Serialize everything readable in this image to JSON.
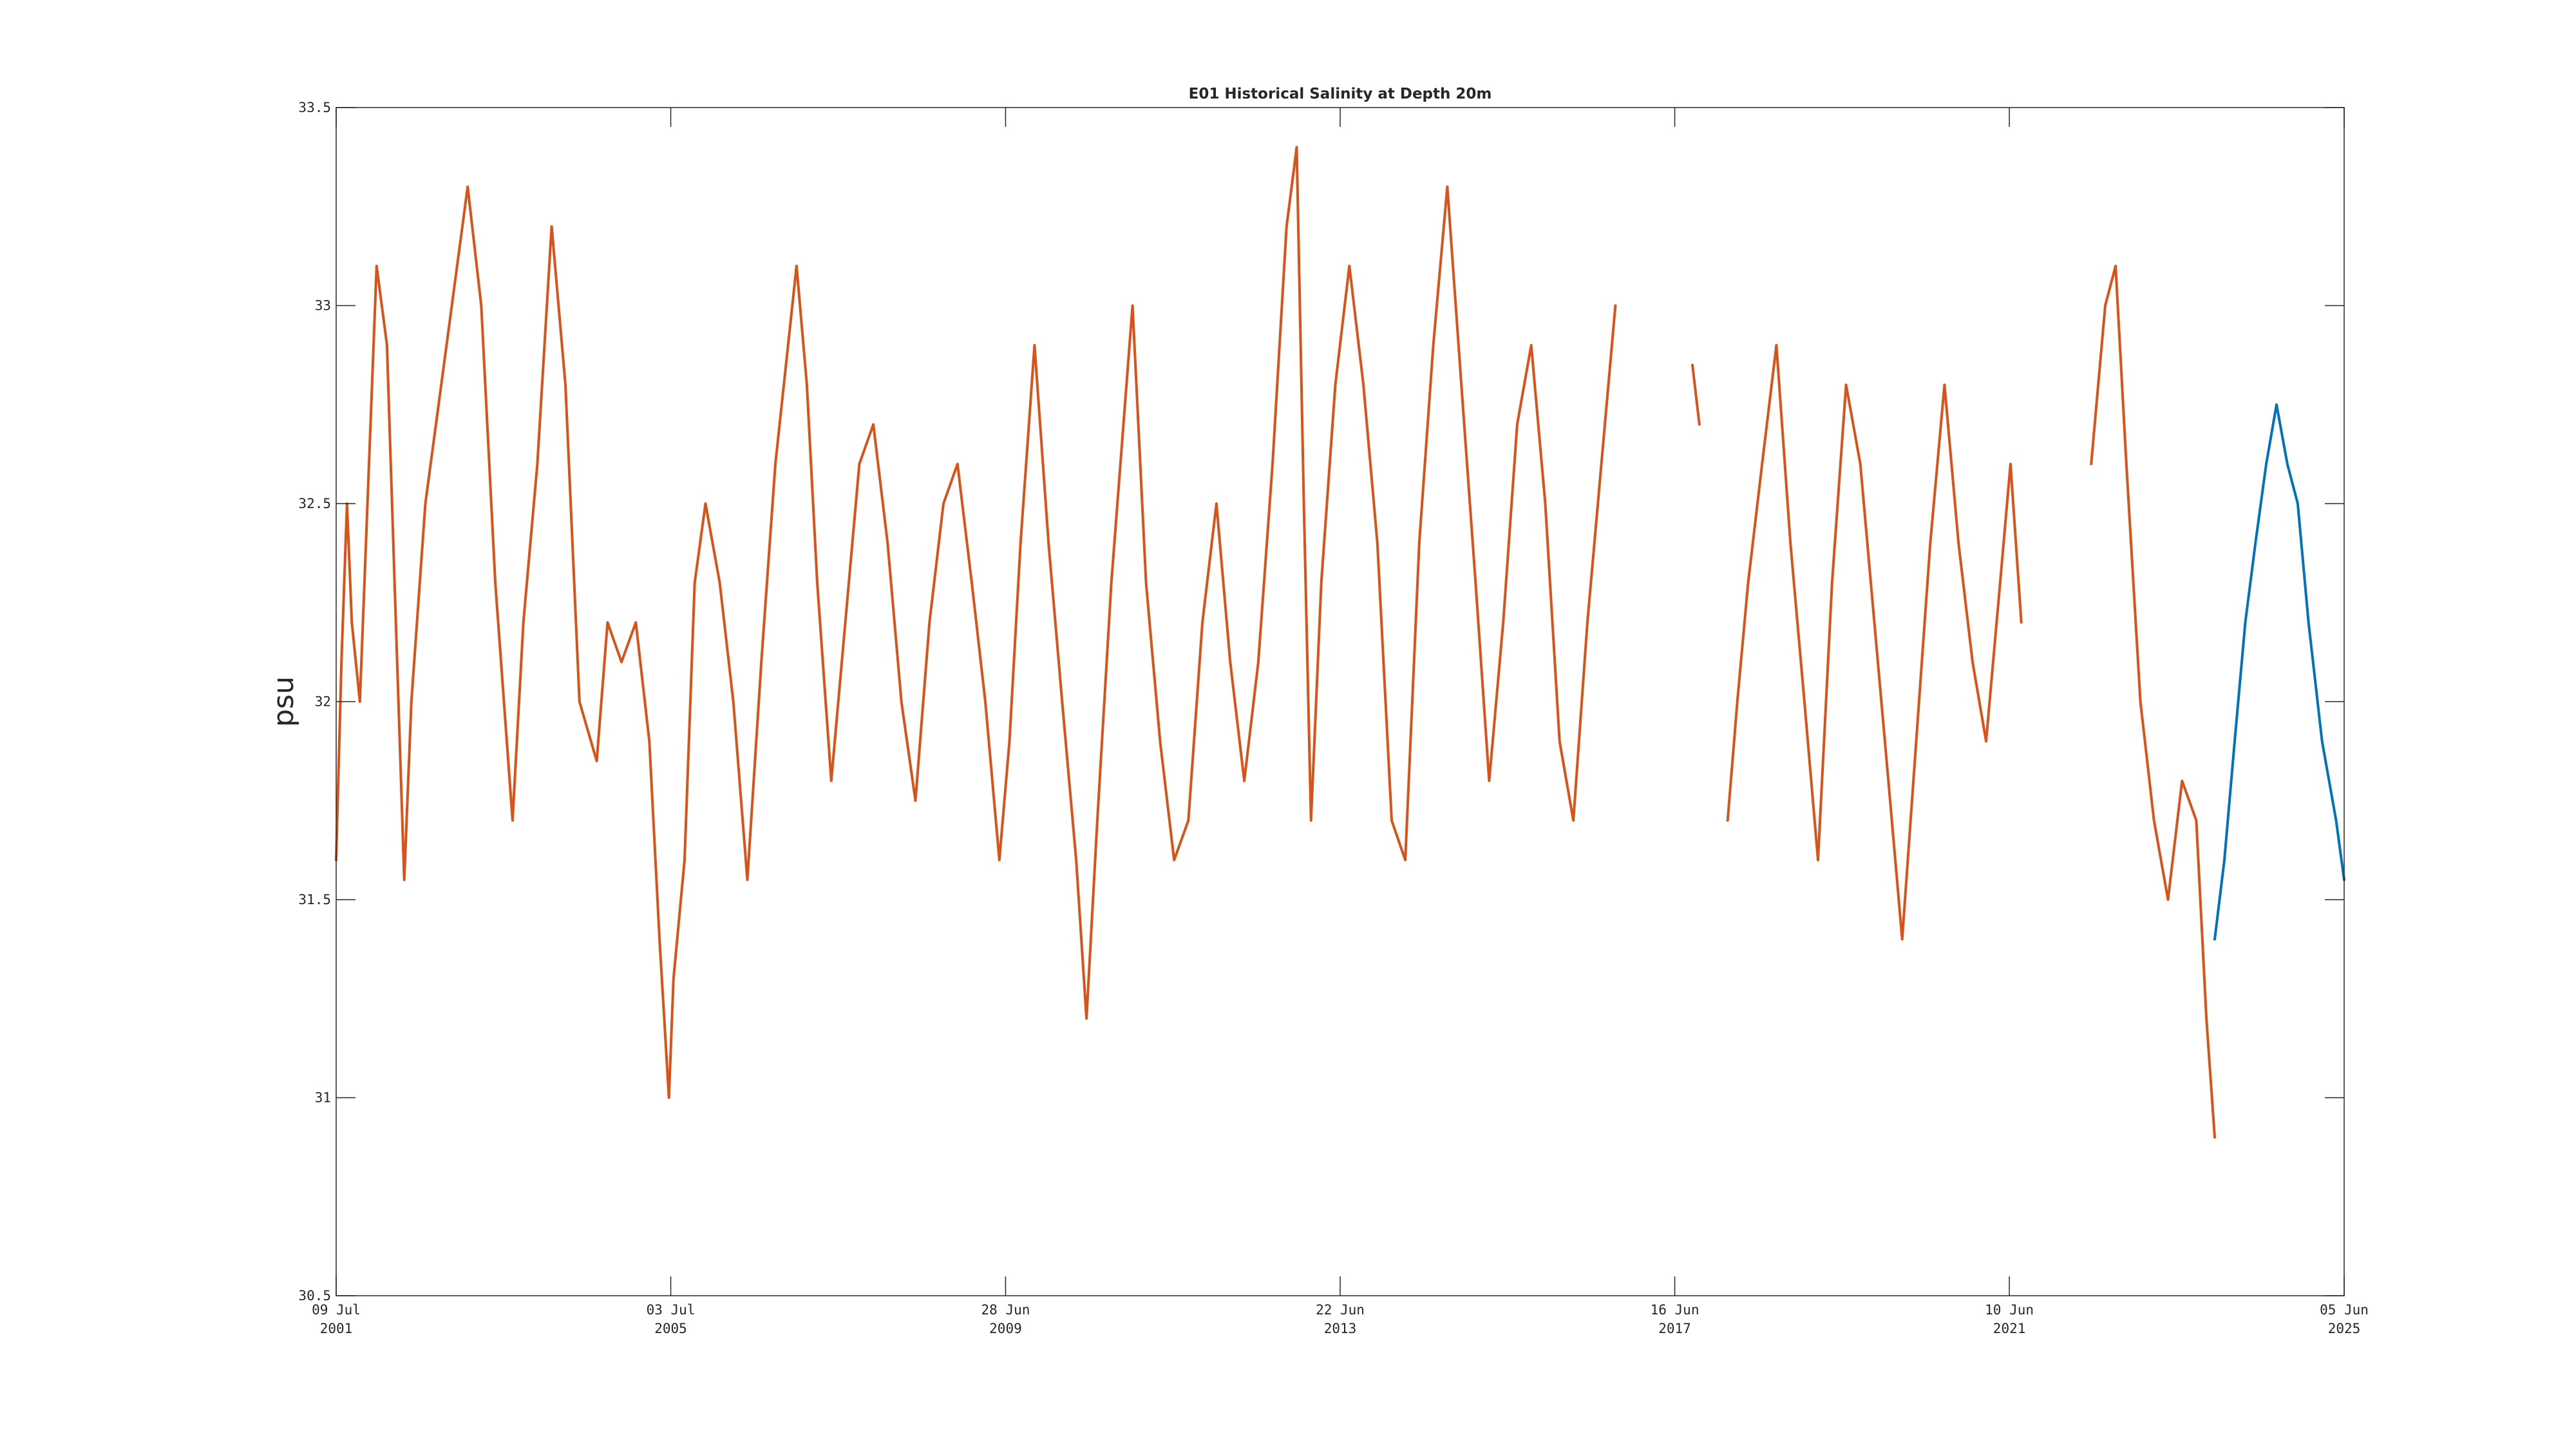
{
  "chart_data": {
    "type": "line",
    "title": "E01 Historical Salinity at Depth 20m",
    "xlabel": "",
    "ylabel": "psu",
    "ylim": [
      30.5,
      33.5
    ],
    "xlim": [
      "2001-07-09",
      "2025-06-05"
    ],
    "grid": false,
    "legend": "none",
    "y_ticks": [
      "30.5",
      "31",
      "31.5",
      "32",
      "32.5",
      "33",
      "33.5"
    ],
    "x_ticks": [
      {
        "date": "2001-07-09",
        "line1": "09 Jul",
        "line2": "2001"
      },
      {
        "date": "2005-07-03",
        "line1": "03 Jul",
        "line2": "2005"
      },
      {
        "date": "2009-06-28",
        "line1": "28 Jun",
        "line2": "2009"
      },
      {
        "date": "2013-06-22",
        "line1": "22 Jun",
        "line2": "2013"
      },
      {
        "date": "2017-06-16",
        "line1": "16 Jun",
        "line2": "2017"
      },
      {
        "date": "2021-06-10",
        "line1": "10 Jun",
        "line2": "2021"
      },
      {
        "date": "2025-06-05",
        "line1": "05 Jun",
        "line2": "2025"
      }
    ],
    "series": [
      {
        "color": "#D95319",
        "segments": [
          [
            [
              "2001-07-09",
              31.6
            ],
            [
              "2001-08-01",
              32.1
            ],
            [
              "2001-08-25",
              32.5
            ],
            [
              "2001-09-15",
              32.2
            ],
            [
              "2001-10-20",
              32.0
            ],
            [
              "2002-01-01",
              33.1
            ],
            [
              "2002-02-15",
              32.9
            ],
            [
              "2002-03-20",
              32.3
            ],
            [
              "2002-05-01",
              31.55
            ],
            [
              "2002-06-01",
              32.0
            ],
            [
              "2002-08-01",
              32.5
            ],
            [
              "2002-11-01",
              32.9
            ],
            [
              "2003-02-01",
              33.3
            ],
            [
              "2003-04-01",
              33.0
            ],
            [
              "2003-06-01",
              32.3
            ],
            [
              "2003-08-15",
              31.7
            ],
            [
              "2003-10-01",
              32.2
            ],
            [
              "2003-12-01",
              32.6
            ],
            [
              "2004-02-01",
              33.2
            ],
            [
              "2004-04-01",
              32.8
            ],
            [
              "2004-06-01",
              32.0
            ],
            [
              "2004-08-15",
              31.85
            ],
            [
              "2004-10-01",
              32.2
            ],
            [
              "2004-12-01",
              32.1
            ],
            [
              "2005-02-01",
              32.2
            ],
            [
              "2005-04-01",
              31.9
            ],
            [
              "2005-05-15",
              31.4
            ],
            [
              "2005-06-25",
              31.0
            ],
            [
              "2005-07-15",
              31.3
            ],
            [
              "2005-09-01",
              31.6
            ],
            [
              "2005-10-15",
              32.3
            ],
            [
              "2005-12-01",
              32.5
            ],
            [
              "2006-02-01",
              32.3
            ],
            [
              "2006-04-01",
              32.0
            ],
            [
              "2006-06-01",
              31.55
            ],
            [
              "2006-08-01",
              32.1
            ],
            [
              "2006-10-01",
              32.6
            ],
            [
              "2007-01-01",
              33.1
            ],
            [
              "2007-02-15",
              32.8
            ],
            [
              "2007-04-01",
              32.3
            ],
            [
              "2007-06-01",
              31.8
            ],
            [
              "2007-08-01",
              32.2
            ],
            [
              "2007-10-01",
              32.6
            ],
            [
              "2007-12-01",
              32.7
            ],
            [
              "2008-02-01",
              32.4
            ],
            [
              "2008-04-01",
              32.0
            ],
            [
              "2008-06-01",
              31.75
            ],
            [
              "2008-08-01",
              32.2
            ],
            [
              "2008-10-01",
              32.5
            ],
            [
              "2008-12-01",
              32.6
            ],
            [
              "2009-02-01",
              32.3
            ],
            [
              "2009-04-01",
              32.0
            ],
            [
              "2009-06-01",
              31.6
            ],
            [
              "2009-07-15",
              31.9
            ],
            [
              "2009-09-01",
              32.4
            ],
            [
              "2009-11-01",
              32.9
            ],
            [
              "2010-01-01",
              32.4
            ],
            [
              "2010-03-01",
              32.0
            ],
            [
              "2010-05-01",
              31.6
            ],
            [
              "2010-06-15",
              31.2
            ],
            [
              "2010-08-01",
              31.7
            ],
            [
              "2010-10-01",
              32.3
            ],
            [
              "2011-01-01",
              33.0
            ],
            [
              "2011-03-01",
              32.3
            ],
            [
              "2011-05-01",
              31.9
            ],
            [
              "2011-07-01",
              31.6
            ],
            [
              "2011-09-01",
              31.7
            ],
            [
              "2011-11-01",
              32.2
            ],
            [
              "2012-01-01",
              32.5
            ],
            [
              "2012-03-01",
              32.1
            ],
            [
              "2012-05-01",
              31.8
            ],
            [
              "2012-07-01",
              32.1
            ],
            [
              "2012-09-01",
              32.6
            ],
            [
              "2012-11-01",
              33.2
            ],
            [
              "2012-12-15",
              33.4
            ],
            [
              "2013-01-15",
              32.5
            ],
            [
              "2013-02-15",
              31.7
            ],
            [
              "2013-04-01",
              32.3
            ],
            [
              "2013-06-01",
              32.8
            ],
            [
              "2013-08-01",
              33.1
            ],
            [
              "2013-10-01",
              32.8
            ],
            [
              "2013-12-01",
              32.4
            ],
            [
              "2014-02-01",
              31.7
            ],
            [
              "2014-04-01",
              31.6
            ],
            [
              "2014-06-01",
              32.4
            ],
            [
              "2014-08-01",
              32.9
            ],
            [
              "2014-10-01",
              33.3
            ],
            [
              "2014-12-01",
              32.8
            ],
            [
              "2015-02-01",
              32.3
            ],
            [
              "2015-04-01",
              31.8
            ],
            [
              "2015-06-01",
              32.2
            ],
            [
              "2015-08-01",
              32.7
            ],
            [
              "2015-10-01",
              32.9
            ],
            [
              "2015-12-01",
              32.5
            ],
            [
              "2016-02-01",
              31.9
            ],
            [
              "2016-04-01",
              31.7
            ],
            [
              "2016-06-01",
              32.2
            ],
            [
              "2016-08-01",
              32.6
            ],
            [
              "2016-10-01",
              33.0
            ]
          ],
          [
            [
              "2017-09-01",
              32.85
            ],
            [
              "2017-10-01",
              32.7
            ]
          ],
          [
            [
              "2018-02-01",
              31.7
            ],
            [
              "2018-03-15",
              32.0
            ],
            [
              "2018-05-01",
              32.3
            ],
            [
              "2018-07-01",
              32.6
            ],
            [
              "2018-09-01",
              32.9
            ],
            [
              "2018-11-01",
              32.4
            ],
            [
              "2019-01-01",
              32.0
            ],
            [
              "2019-03-01",
              31.6
            ],
            [
              "2019-05-01",
              32.3
            ],
            [
              "2019-07-01",
              32.8
            ],
            [
              "2019-09-01",
              32.6
            ],
            [
              "2019-11-01",
              32.2
            ],
            [
              "2020-01-01",
              31.8
            ],
            [
              "2020-03-01",
              31.4
            ],
            [
              "2020-05-01",
              31.9
            ],
            [
              "2020-07-01",
              32.4
            ],
            [
              "2020-09-01",
              32.8
            ],
            [
              "2020-11-01",
              32.4
            ],
            [
              "2021-01-01",
              32.1
            ],
            [
              "2021-03-01",
              31.9
            ],
            [
              "2021-05-01",
              32.3
            ],
            [
              "2021-06-15",
              32.6
            ],
            [
              "2021-08-01",
              32.2
            ]
          ],
          [
            [
              "2022-06-01",
              32.6
            ],
            [
              "2022-08-01",
              33.0
            ],
            [
              "2022-09-15",
              33.1
            ],
            [
              "2022-11-01",
              32.6
            ],
            [
              "2023-01-01",
              32.0
            ],
            [
              "2023-03-01",
              31.7
            ],
            [
              "2023-05-01",
              31.5
            ],
            [
              "2023-07-01",
              31.8
            ],
            [
              "2023-09-01",
              31.7
            ],
            [
              "2023-10-15",
              31.2
            ],
            [
              "2023-11-20",
              30.9
            ]
          ]
        ]
      },
      {
        "color": "#0072BD",
        "segments": [
          [
            [
              "2023-11-20",
              31.4
            ],
            [
              "2024-01-01",
              31.6
            ],
            [
              "2024-02-15",
              31.9
            ],
            [
              "2024-04-01",
              32.2
            ],
            [
              "2024-05-15",
              32.4
            ],
            [
              "2024-07-01",
              32.6
            ],
            [
              "2024-08-15",
              32.75
            ],
            [
              "2024-10-01",
              32.6
            ],
            [
              "2024-11-15",
              32.5
            ],
            [
              "2025-01-01",
              32.2
            ],
            [
              "2025-03-01",
              31.9
            ],
            [
              "2025-05-01",
              31.7
            ],
            [
              "2025-06-05",
              31.55
            ]
          ]
        ]
      }
    ]
  }
}
